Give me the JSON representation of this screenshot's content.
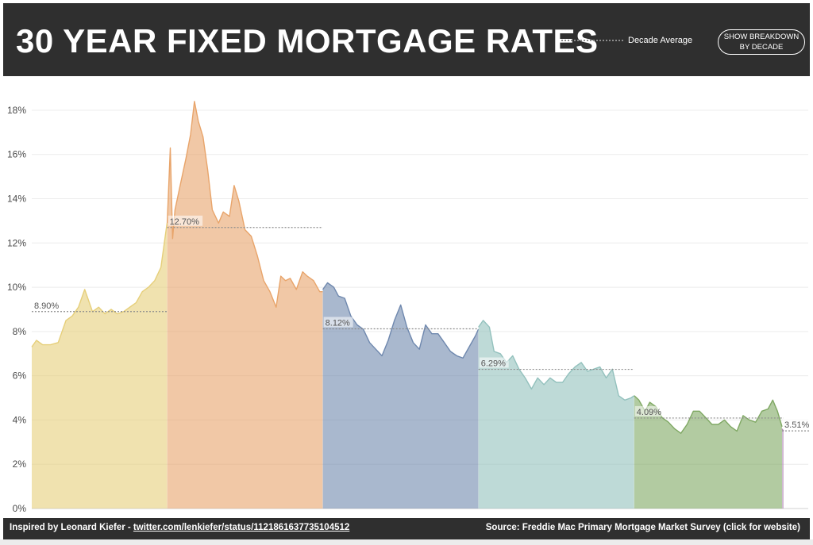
{
  "header": {
    "title": "30 YEAR FIXED MORTGAGE RATES",
    "legend_label": "Decade Average",
    "breakdown_button": "SHOW BREAKDOWN BY DECADE"
  },
  "footer": {
    "inspired_prefix": "Inspired by Leonard Kiefer - ",
    "inspired_link": "twitter.com/lenkiefer/status/1121861637735104512",
    "source": "Source: Freddie Mac Primary Mortgage Market Survey (click for website)"
  },
  "colors": {
    "header_bg": "#2f2f2f",
    "decade_1970s": "#e6cf7a",
    "decade_1980s": "#e8a46a",
    "decade_1990s": "#6f88ae",
    "decade_2000s": "#93c1bd",
    "decade_2010s": "#7fa863",
    "decade_2020s": "#b08ab4",
    "average_line": "#8c8c8c"
  },
  "chart_data": {
    "type": "area",
    "x_range": [
      1971.3,
      2019.6
    ],
    "ylim": [
      0,
      18.5
    ],
    "y_ticks": [
      0,
      2,
      4,
      6,
      8,
      10,
      12,
      14,
      16,
      18
    ],
    "y_tick_labels": [
      "0%",
      "2%",
      "4%",
      "6%",
      "8%",
      "10%",
      "12%",
      "14%",
      "16%",
      "18%"
    ],
    "y_grid": true,
    "series": [
      {
        "x": [
          1971.3,
          1971.6,
          1972.0,
          1972.5,
          1973.0,
          1973.5,
          1973.9,
          1974.3,
          1974.7,
          1974.9,
          1975.2,
          1975.6,
          1976.0,
          1976.4,
          1976.8,
          1977.2,
          1977.6,
          1978.0,
          1978.4,
          1978.8,
          1979.2,
          1979.6,
          1979.99
        ],
        "y": [
          7.3,
          7.6,
          7.4,
          7.4,
          7.5,
          8.5,
          8.7,
          9.1,
          9.9,
          9.5,
          8.9,
          9.1,
          8.8,
          9.0,
          8.8,
          8.9,
          9.1,
          9.3,
          9.8,
          10.0,
          10.3,
          10.9,
          12.9
        ]
      },
      {
        "x": [
          1980.0,
          1980.2,
          1980.35,
          1980.5,
          1980.8,
          1981.2,
          1981.5,
          1981.75,
          1982.0,
          1982.3,
          1982.6,
          1982.9,
          1983.3,
          1983.6,
          1984.0,
          1984.3,
          1984.6,
          1985.0,
          1985.4,
          1985.8,
          1986.2,
          1986.6,
          1987.0,
          1987.3,
          1987.6,
          1987.9,
          1988.3,
          1988.7,
          1989.0,
          1989.4,
          1989.8,
          1989.99
        ],
        "y": [
          12.9,
          16.3,
          12.2,
          13.5,
          14.5,
          15.8,
          16.9,
          18.4,
          17.5,
          16.8,
          15.3,
          13.5,
          12.9,
          13.4,
          13.2,
          14.6,
          13.9,
          12.6,
          12.3,
          11.4,
          10.3,
          9.8,
          9.1,
          10.5,
          10.3,
          10.4,
          9.9,
          10.7,
          10.5,
          10.3,
          9.8,
          9.8
        ]
      },
      {
        "x": [
          1990.0,
          1990.3,
          1990.7,
          1991.0,
          1991.4,
          1991.8,
          1992.2,
          1992.6,
          1993.0,
          1993.4,
          1993.8,
          1994.2,
          1994.6,
          1995.0,
          1995.4,
          1995.8,
          1996.2,
          1996.6,
          1997.0,
          1997.4,
          1997.8,
          1998.2,
          1998.6,
          1999.0,
          1999.4,
          1999.8,
          1999.99
        ],
        "y": [
          9.9,
          10.2,
          10.0,
          9.6,
          9.5,
          8.7,
          8.3,
          8.1,
          7.5,
          7.2,
          6.9,
          7.6,
          8.5,
          9.2,
          8.2,
          7.5,
          7.2,
          8.3,
          7.9,
          7.9,
          7.5,
          7.1,
          6.9,
          6.8,
          7.3,
          7.8,
          8.1
        ]
      },
      {
        "x": [
          2000.0,
          2000.3,
          2000.7,
          2001.0,
          2001.4,
          2001.8,
          2002.2,
          2002.6,
          2003.0,
          2003.4,
          2003.8,
          2004.2,
          2004.6,
          2005.0,
          2005.4,
          2005.8,
          2006.2,
          2006.6,
          2007.0,
          2007.4,
          2007.8,
          2008.2,
          2008.6,
          2009.0,
          2009.4,
          2009.8,
          2009.99
        ],
        "y": [
          8.2,
          8.5,
          8.2,
          7.1,
          7.0,
          6.6,
          6.9,
          6.3,
          5.9,
          5.4,
          5.9,
          5.6,
          5.9,
          5.7,
          5.7,
          6.1,
          6.4,
          6.6,
          6.2,
          6.3,
          6.4,
          5.9,
          6.3,
          5.1,
          4.9,
          5.0,
          5.1
        ]
      },
      {
        "x": [
          2010.0,
          2010.3,
          2010.7,
          2011.0,
          2011.4,
          2011.8,
          2012.2,
          2012.6,
          2013.0,
          2013.4,
          2013.8,
          2014.2,
          2014.6,
          2015.0,
          2015.4,
          2015.8,
          2016.2,
          2016.6,
          2017.0,
          2017.4,
          2017.8,
          2018.2,
          2018.6,
          2018.9,
          2019.2,
          2019.5
        ],
        "y": [
          5.1,
          4.9,
          4.4,
          4.8,
          4.6,
          4.1,
          3.9,
          3.6,
          3.4,
          3.8,
          4.4,
          4.4,
          4.1,
          3.8,
          3.8,
          4.0,
          3.7,
          3.5,
          4.2,
          4.0,
          3.9,
          4.4,
          4.5,
          4.9,
          4.4,
          3.7
        ]
      },
      {
        "x": [
          2019.5,
          2019.6
        ],
        "y": [
          3.6,
          3.5
        ]
      }
    ],
    "decade_averages": [
      {
        "label": "8.90%",
        "value": 8.9,
        "x_start": 1971.3,
        "x_end": 1980.0
      },
      {
        "label": "12.70%",
        "value": 12.7,
        "x_start": 1980.0,
        "x_end": 1990.0
      },
      {
        "label": "8.12%",
        "value": 8.12,
        "x_start": 1990.0,
        "x_end": 2000.0
      },
      {
        "label": "6.29%",
        "value": 6.29,
        "x_start": 2000.0,
        "x_end": 2010.0
      },
      {
        "label": "4.09%",
        "value": 4.09,
        "x_start": 2010.0,
        "x_end": 2019.6
      },
      {
        "label": "3.51%",
        "value": 3.51,
        "x_start": 2019.5,
        "x_end": 2021.5
      }
    ]
  }
}
